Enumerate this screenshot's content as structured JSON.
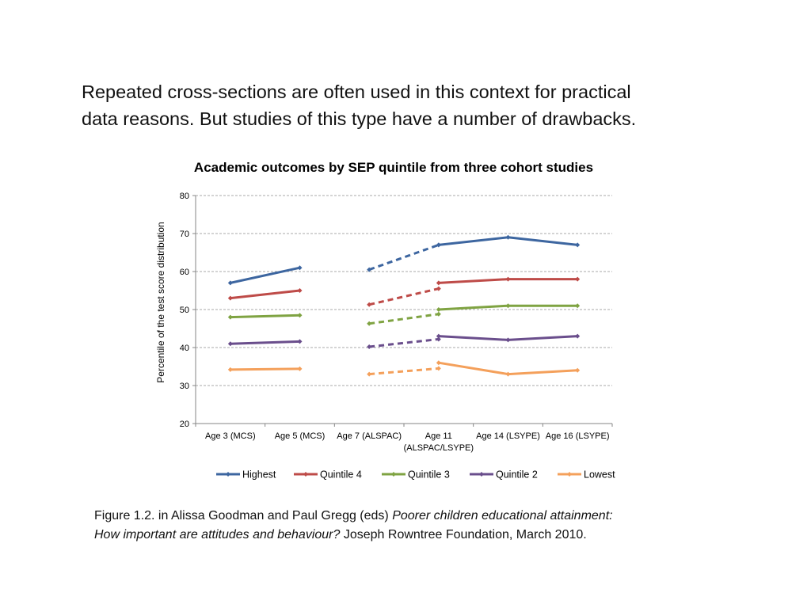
{
  "intro": {
    "line1": "Repeated cross-sections are often used in this context for practical",
    "line2": "data reasons. But studies of this type have a number of drawbacks."
  },
  "chart_data": {
    "type": "line",
    "title": "Academic outcomes by SEP quintile from three cohort studies",
    "ylabel": "Percentile of the test score distribution",
    "xlabel": "",
    "ylim": [
      20,
      80
    ],
    "yticks": [
      20,
      30,
      40,
      50,
      60,
      70,
      80
    ],
    "grid": true,
    "legend_position": "bottom",
    "categories": [
      [
        "Age 3 (MCS)"
      ],
      [
        "Age 5 (MCS)"
      ],
      [
        "Age 7 (ALSPAC)"
      ],
      [
        "Age 11",
        "(ALSPAC/LSYPE)"
      ],
      [
        "Age 14 (LSYPE)"
      ],
      [
        "Age 16 (LSYPE)"
      ]
    ],
    "series": [
      {
        "name": "Highest",
        "color": "#3D66A0",
        "segments": [
          {
            "study": "MCS",
            "style": "solid",
            "points": [
              [
                0,
                57
              ],
              [
                1,
                61
              ]
            ]
          },
          {
            "study": "ALSPAC",
            "style": "dashed",
            "points": [
              [
                2,
                60.5
              ],
              [
                3,
                67
              ]
            ]
          },
          {
            "study": "LSYPE",
            "style": "solid",
            "points": [
              [
                3,
                67
              ],
              [
                4,
                69
              ],
              [
                5,
                67
              ]
            ]
          }
        ]
      },
      {
        "name": "Quintile 4",
        "color": "#BE4B48",
        "segments": [
          {
            "study": "MCS",
            "style": "solid",
            "points": [
              [
                0,
                53
              ],
              [
                1,
                55
              ]
            ]
          },
          {
            "study": "ALSPAC",
            "style": "dashed",
            "points": [
              [
                2,
                51.3
              ],
              [
                3,
                55.5
              ]
            ]
          },
          {
            "study": "LSYPE",
            "style": "solid",
            "points": [
              [
                3,
                57
              ],
              [
                4,
                58
              ],
              [
                5,
                58
              ]
            ]
          }
        ]
      },
      {
        "name": "Quintile 3",
        "color": "#7FA342",
        "segments": [
          {
            "study": "MCS",
            "style": "solid",
            "points": [
              [
                0,
                48
              ],
              [
                1,
                48.5
              ]
            ]
          },
          {
            "study": "ALSPAC",
            "style": "dashed",
            "points": [
              [
                2,
                46.3
              ],
              [
                3,
                48.8
              ]
            ]
          },
          {
            "study": "LSYPE",
            "style": "solid",
            "points": [
              [
                3,
                50
              ],
              [
                4,
                51
              ],
              [
                5,
                51
              ]
            ]
          }
        ]
      },
      {
        "name": "Quintile 2",
        "color": "#6A4E8C",
        "segments": [
          {
            "study": "MCS",
            "style": "solid",
            "points": [
              [
                0,
                41
              ],
              [
                1,
                41.6
              ]
            ]
          },
          {
            "study": "ALSPAC",
            "style": "dashed",
            "points": [
              [
                2,
                40.2
              ],
              [
                3,
                42.2
              ]
            ]
          },
          {
            "study": "LSYPE",
            "style": "solid",
            "points": [
              [
                3,
                43
              ],
              [
                4,
                42
              ],
              [
                5,
                43
              ]
            ]
          }
        ]
      },
      {
        "name": "Lowest",
        "color": "#F4A05B",
        "segments": [
          {
            "study": "MCS",
            "style": "solid",
            "points": [
              [
                0,
                34.2
              ],
              [
                1,
                34.4
              ]
            ]
          },
          {
            "study": "ALSPAC",
            "style": "dashed",
            "points": [
              [
                2,
                33
              ],
              [
                3,
                34.5
              ]
            ]
          },
          {
            "study": "LSYPE",
            "style": "solid",
            "points": [
              [
                3,
                36
              ],
              [
                4,
                33
              ],
              [
                5,
                34
              ]
            ]
          }
        ]
      }
    ]
  },
  "caption": {
    "line1_plain": "Figure 1.2. in Alissa Goodman and Paul Gregg (eds) ",
    "line1_italic": "Poorer children educational attainment:",
    "line2_italic": "How important are attitudes and behaviour?",
    "line2_plain": " Joseph Rowntree Foundation, March 2010."
  }
}
